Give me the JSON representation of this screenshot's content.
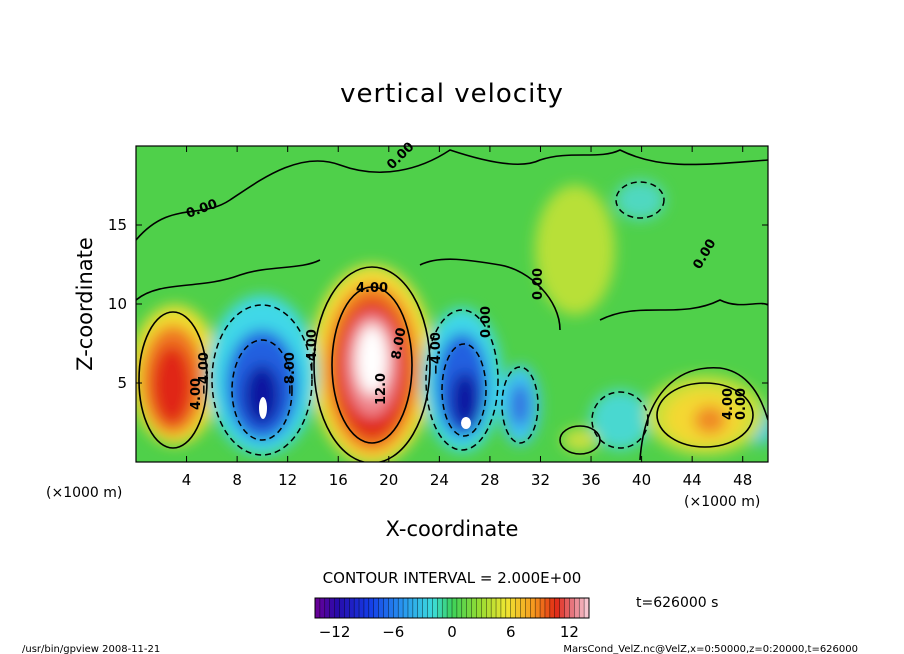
{
  "chart_data": {
    "type": "heatmap",
    "title": "vertical velocity",
    "xlabel": "X-coordinate",
    "ylabel": "Z-coordinate",
    "x_unit_label": "(×1000 m)",
    "y_unit_label": "(×1000 m)",
    "xlim": [
      0,
      50
    ],
    "ylim": [
      0,
      20
    ],
    "x_ticks": [
      4,
      8,
      12,
      16,
      20,
      24,
      28,
      32,
      36,
      40,
      44,
      48
    ],
    "y_ticks": [
      5,
      10,
      15
    ],
    "x_tick_labels": [
      "4",
      "8",
      "12",
      "16",
      "20",
      "24",
      "28",
      "32",
      "36",
      "40",
      "44",
      "48"
    ],
    "y_tick_labels": [
      "5",
      "10",
      "15"
    ],
    "contour_interval_text": "CONTOUR INTERVAL = 2.000E+00",
    "colorbar": {
      "range": [
        -14,
        14
      ],
      "ticks": [
        -12,
        -6,
        0,
        6,
        12
      ],
      "tick_labels": [
        "−12",
        "−6",
        "0",
        "6",
        "12"
      ]
    },
    "contour_labels": [
      "0.00",
      "0.00",
      "0.00",
      "4.00",
      "8.00",
      "12.0",
      "−8.00",
      "−4.00",
      "4.00",
      "4.00",
      "−4.00",
      "0.00",
      "0.00",
      "−4.00",
      "0.00"
    ],
    "features": [
      {
        "kind": "updraft",
        "x": 3.0,
        "z": 5.0,
        "peak": 10
      },
      {
        "kind": "downdraft",
        "x": 10.0,
        "z": 5.0,
        "peak": -14
      },
      {
        "kind": "updraft",
        "x": 18.5,
        "z": 7.0,
        "peak": 14
      },
      {
        "kind": "downdraft",
        "x": 25.5,
        "z": 4.0,
        "peak": -14
      },
      {
        "kind": "downdraft",
        "x": 30.0,
        "z": 4.0,
        "peak": -6
      },
      {
        "kind": "updraft",
        "x": 45.0,
        "z": 3.0,
        "peak": 8
      }
    ],
    "time_label": "t=626000  s",
    "footer_left": "/usr/bin/gpview   2008-11-21",
    "footer_right": "MarsCond_VelZ.nc@VelZ,x=0:50000,z=0:20000,t=626000"
  }
}
